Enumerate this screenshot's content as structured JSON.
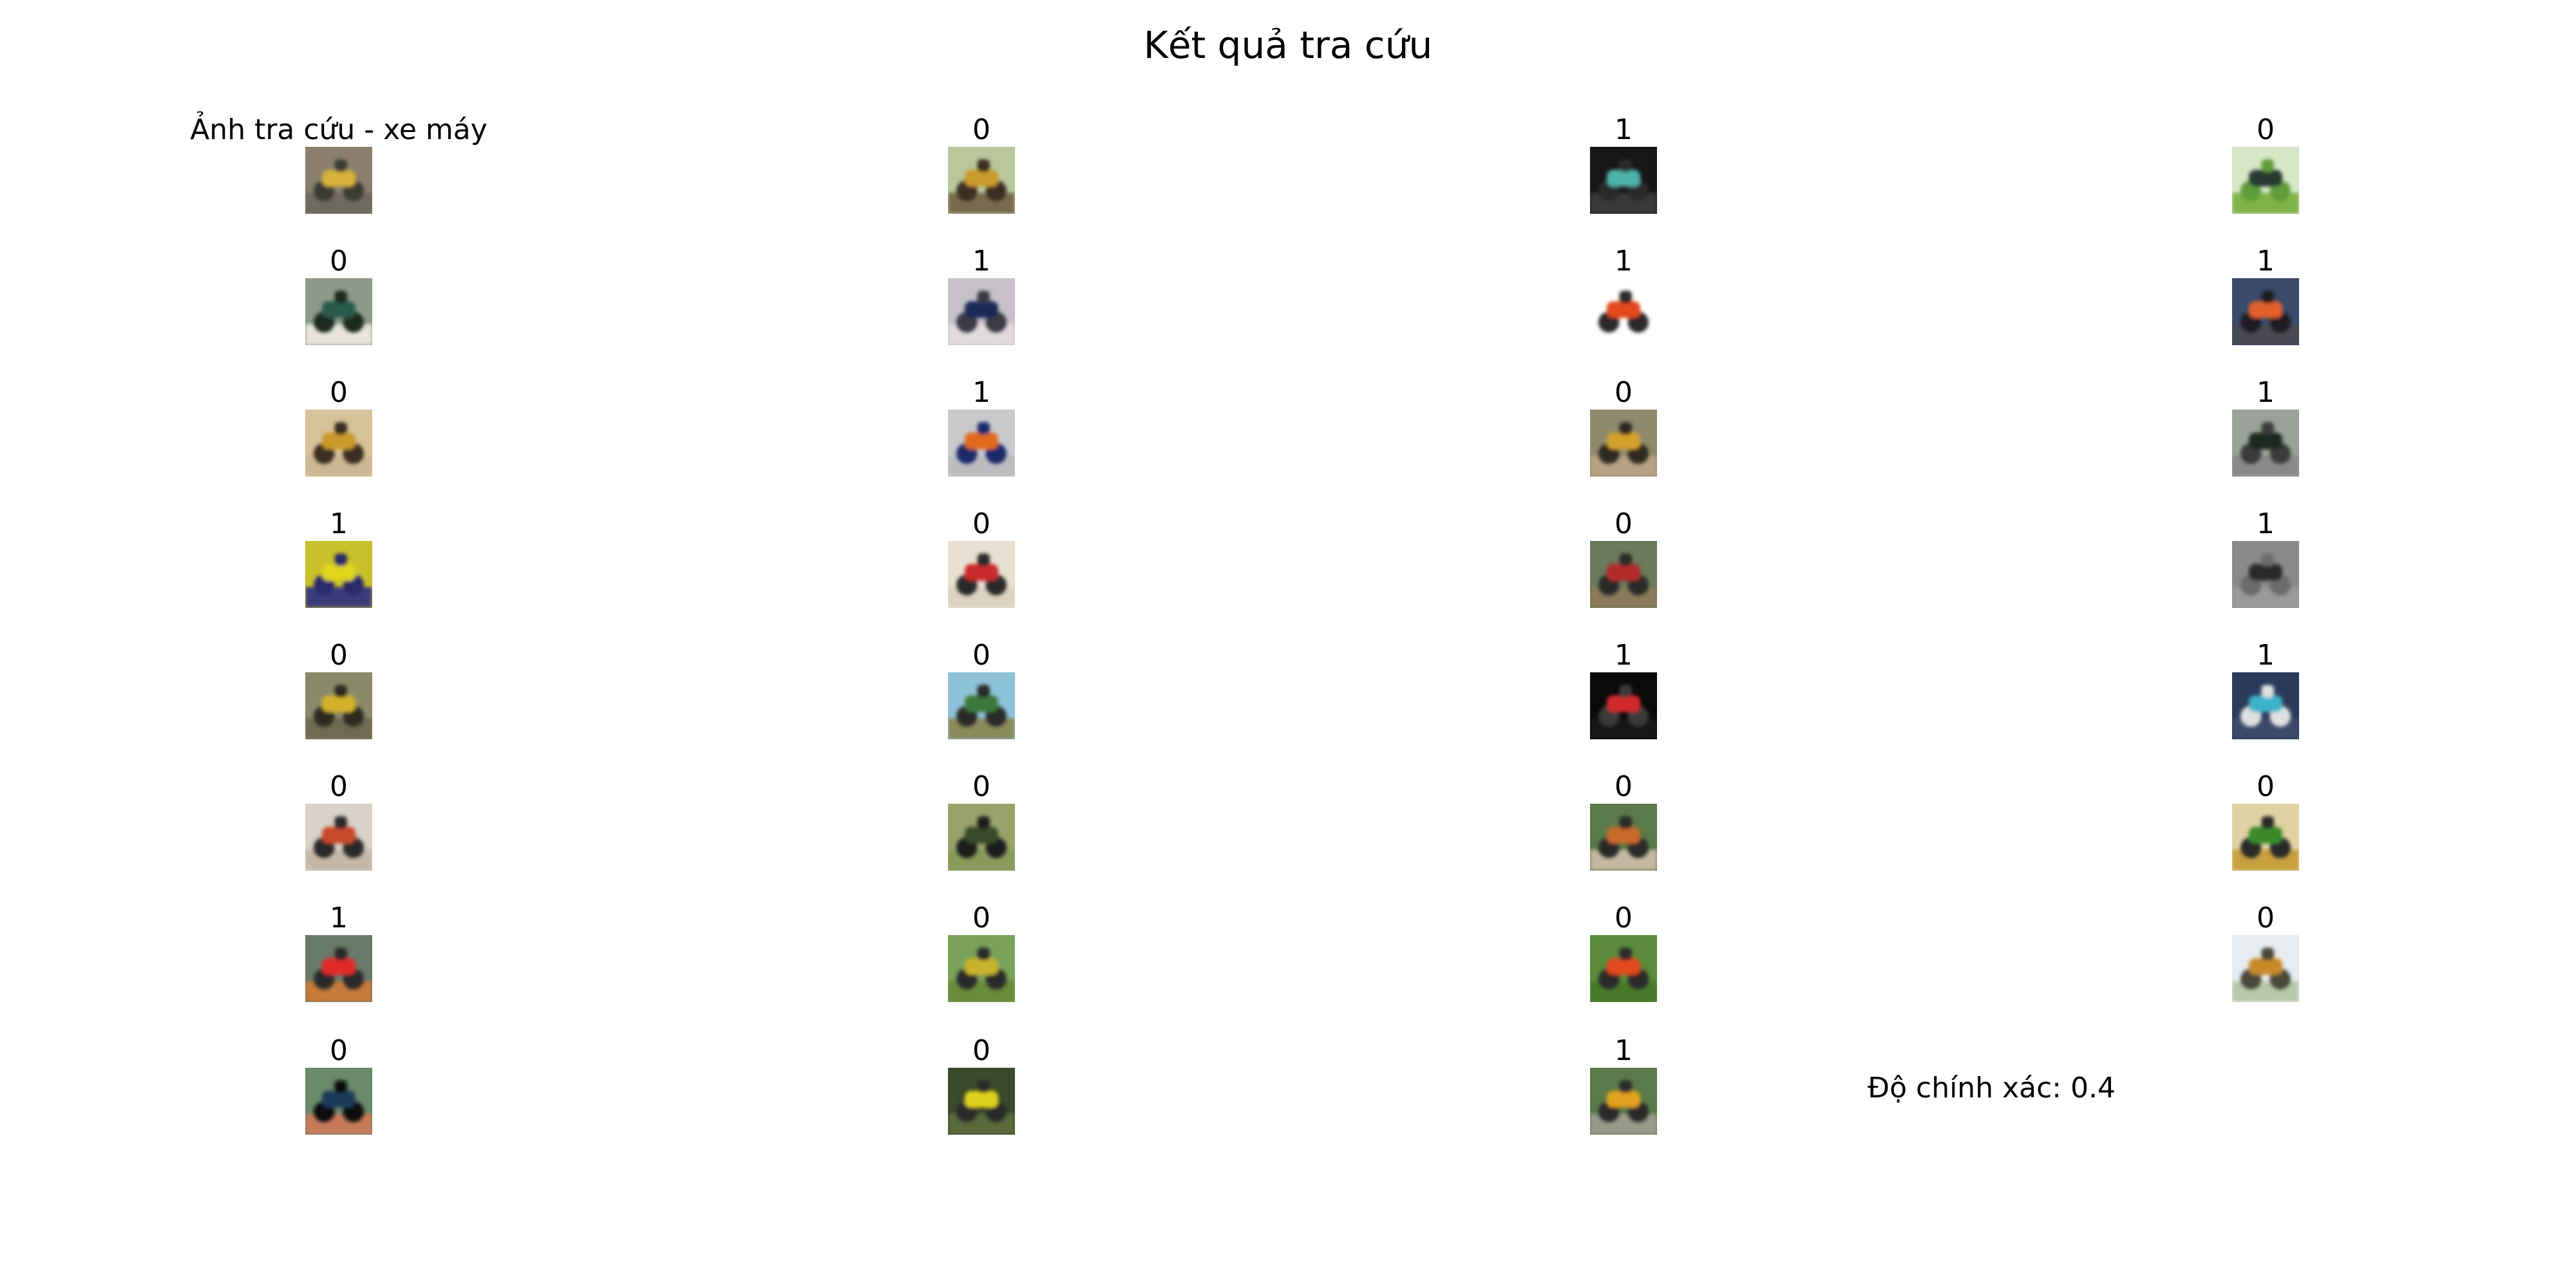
{
  "title": "Kết quả tra cứu",
  "query": {
    "label": "Ảnh tra cứu - xe máy",
    "colors": {
      "bg": "#8a7f6e",
      "body": "#d6b23a",
      "accent": "#3b3a36",
      "ground": "#6e6a62"
    }
  },
  "results": [
    {
      "label": "0",
      "colors": {
        "bg": "#b9c79b",
        "body": "#c99a2a",
        "accent": "#3b2f22",
        "ground": "#7a6a4e"
      }
    },
    {
      "label": "1",
      "colors": {
        "bg": "#161616",
        "body": "#4fb3a9",
        "accent": "#2a2a2a",
        "ground": "#3a3a3a"
      }
    },
    {
      "label": "0",
      "colors": {
        "bg": "#d7e6c5",
        "body": "#2b3a34",
        "accent": "#5f9c3a",
        "ground": "#7fb34a"
      }
    },
    {
      "label": "0",
      "colors": {
        "bg": "#8e9a8a",
        "body": "#2a5a4c",
        "accent": "#1d2a24",
        "ground": "#e9e4dc"
      }
    },
    {
      "label": "1",
      "colors": {
        "bg": "#c6c2c8",
        "body": "#1f2a5a",
        "accent": "#3a3a44",
        "ground": "#e0dcdc"
      }
    },
    {
      "label": "1",
      "colors": {
        "bg": "#ffffff",
        "body": "#e24a1f",
        "accent": "#2a2a2a",
        "ground": "#ffffff"
      }
    },
    {
      "label": "1",
      "colors": {
        "bg": "#3a4a6a",
        "body": "#e2612a",
        "accent": "#1a1a22",
        "ground": "#4a4a52"
      }
    },
    {
      "label": "0",
      "colors": {
        "bg": "#d8c29a",
        "body": "#c99a2a",
        "accent": "#3b2f22",
        "ground": "#cdb795"
      }
    },
    {
      "label": "1",
      "colors": {
        "bg": "#c9c9cc",
        "body": "#e26a1f",
        "accent": "#1d2a6a",
        "ground": "#bdbdbf"
      }
    },
    {
      "label": "0",
      "colors": {
        "bg": "#8f8a6e",
        "body": "#d2a12a",
        "accent": "#2f2a22",
        "ground": "#b7a182"
      }
    },
    {
      "label": "1",
      "colors": {
        "bg": "#9aa19a",
        "body": "#1a2a22",
        "accent": "#3a3a3a",
        "ground": "#8a8a88"
      }
    },
    {
      "label": "1",
      "colors": {
        "bg": "#c9c02a",
        "body": "#e0d61f",
        "accent": "#2a2a6a",
        "ground": "#3a3a7a"
      }
    },
    {
      "label": "0",
      "colors": {
        "bg": "#e8e0d0",
        "body": "#c92a2a",
        "accent": "#2a2a2a",
        "ground": "#dcd2c0"
      }
    },
    {
      "label": "0",
      "colors": {
        "bg": "#6a7a5a",
        "body": "#b32a2a",
        "accent": "#2a2a2a",
        "ground": "#8a7a5a"
      }
    },
    {
      "label": "1",
      "colors": {
        "bg": "#8a8a8a",
        "body": "#2a2a2a",
        "accent": "#6a6a6a",
        "ground": "#9a9a9a"
      }
    },
    {
      "label": "0",
      "colors": {
        "bg": "#8a8a6a",
        "body": "#d2b22a",
        "accent": "#2f2a22",
        "ground": "#6e6a52"
      }
    },
    {
      "label": "0",
      "colors": {
        "bg": "#8ec2d8",
        "body": "#3a7a3a",
        "accent": "#2a2a2a",
        "ground": "#8a8a5a"
      }
    },
    {
      "label": "1",
      "colors": {
        "bg": "#0a0a0a",
        "body": "#d22a2a",
        "accent": "#3a3a3a",
        "ground": "#121212"
      }
    },
    {
      "label": "1",
      "colors": {
        "bg": "#2a3a5a",
        "body": "#3ab3c9",
        "accent": "#e0e0e0",
        "ground": "#3a4a6a"
      }
    },
    {
      "label": "0",
      "colors": {
        "bg": "#d8d2c8",
        "body": "#c94a2a",
        "accent": "#2a2a2a",
        "ground": "#c6b8a8"
      }
    },
    {
      "label": "0",
      "colors": {
        "bg": "#9aa26a",
        "body": "#3a4a2a",
        "accent": "#1a1a1a",
        "ground": "#8a9a5a"
      }
    },
    {
      "label": "0",
      "colors": {
        "bg": "#5a7a4a",
        "body": "#c96a2a",
        "accent": "#2a2a2a",
        "ground": "#c6b8a0"
      }
    },
    {
      "label": "0",
      "colors": {
        "bg": "#e0d2a0",
        "body": "#3a8a2a",
        "accent": "#2a2a2a",
        "ground": "#c9a040"
      }
    },
    {
      "label": "1",
      "colors": {
        "bg": "#6a7a6a",
        "body": "#e22a2a",
        "accent": "#2a2a2a",
        "ground": "#c67a3a"
      }
    },
    {
      "label": "0",
      "colors": {
        "bg": "#7aa25a",
        "body": "#c9b22a",
        "accent": "#2a2a2a",
        "ground": "#6a8a3a"
      }
    },
    {
      "label": "0",
      "colors": {
        "bg": "#5a8a3a",
        "body": "#e24a1f",
        "accent": "#2a2a2a",
        "ground": "#4a7a2a"
      }
    },
    {
      "label": "0",
      "colors": {
        "bg": "#e8ecf0",
        "body": "#c98a2a",
        "accent": "#4a4a3a",
        "ground": "#b8c8a8"
      }
    },
    {
      "label": "0",
      "colors": {
        "bg": "#6a8a6a",
        "body": "#1a3a5a",
        "accent": "#0a0a0a",
        "ground": "#c67a5a"
      }
    },
    {
      "label": "0",
      "colors": {
        "bg": "#3a4a2a",
        "body": "#e0d21f",
        "accent": "#2a2a2a",
        "ground": "#5a6a3a"
      }
    },
    {
      "label": "1",
      "colors": {
        "bg": "#5a7a4a",
        "body": "#e0a21f",
        "accent": "#2a2a2a",
        "ground": "#9a9a8a"
      }
    }
  ],
  "accuracy_text": "Độ chính xác: 0.4"
}
